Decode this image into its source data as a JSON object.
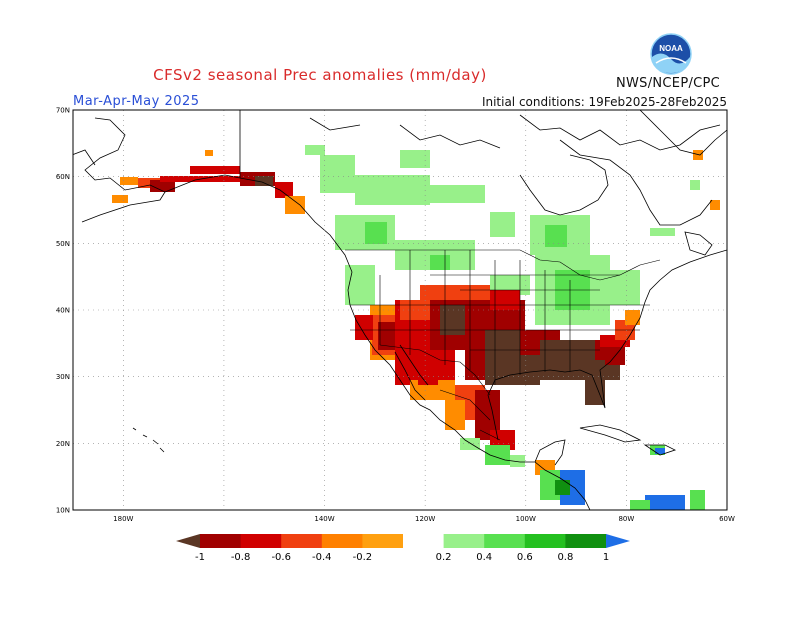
{
  "header": {
    "title": "CFSv2 seasonal Prec anomalies (mm/day)",
    "season": "Mar-Apr-May 2025",
    "initial_conditions": "Initial conditions: 19Feb2025-28Feb2025",
    "agency": "NWS/NCEP/CPC",
    "logo_text": "NOAA"
  },
  "map": {
    "lon_range": [
      -190,
      -60
    ],
    "lat_range": [
      10,
      70
    ],
    "lat_labels": [
      "10N",
      "20N",
      "30N",
      "40N",
      "50N",
      "60N",
      "70N"
    ],
    "lon_labels": [
      "180W",
      "140W",
      "120W",
      "100W",
      "80W",
      "60W"
    ],
    "grid": true
  },
  "legend": {
    "labels": [
      "-1",
      "-0.8",
      "-0.6",
      "-0.4",
      "-0.2",
      "0.2",
      "0.4",
      "0.6",
      "0.8",
      "1"
    ],
    "colors": [
      "#5a3624",
      "#a00000",
      "#d00000",
      "#f04010",
      "#ff8000",
      "#ffa010",
      "#ffffff",
      "#98f08a",
      "#58e050",
      "#24c020",
      "#109010",
      "#1e6ee6"
    ]
  },
  "anomaly_colors": {
    "dry_extreme": "#5a3624",
    "dry_strong": "#a00000",
    "dry_moderate": "#d00000",
    "dry_mild": "#f04010",
    "dry_weak": "#ff8c00",
    "wet_weak": "#98f08a",
    "wet_mild": "#58e050",
    "wet_strong": "#109010",
    "wet_extreme": "#1e6ee6"
  }
}
